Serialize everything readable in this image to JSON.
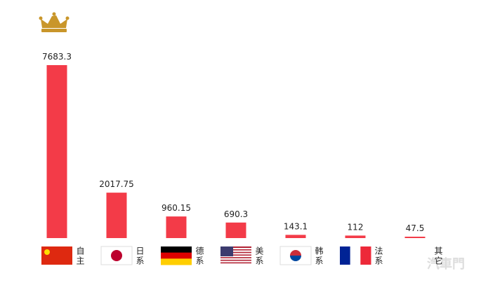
{
  "chart_data": {
    "type": "bar",
    "categories": [
      "自主",
      "日系",
      "德系",
      "美系",
      "韩系",
      "法系",
      "其它"
    ],
    "values": [
      7683.3,
      2017.75,
      960.15,
      690.3,
      143.1,
      112,
      47.5
    ],
    "color": "#f33b48"
  },
  "watermark": "汽車門"
}
